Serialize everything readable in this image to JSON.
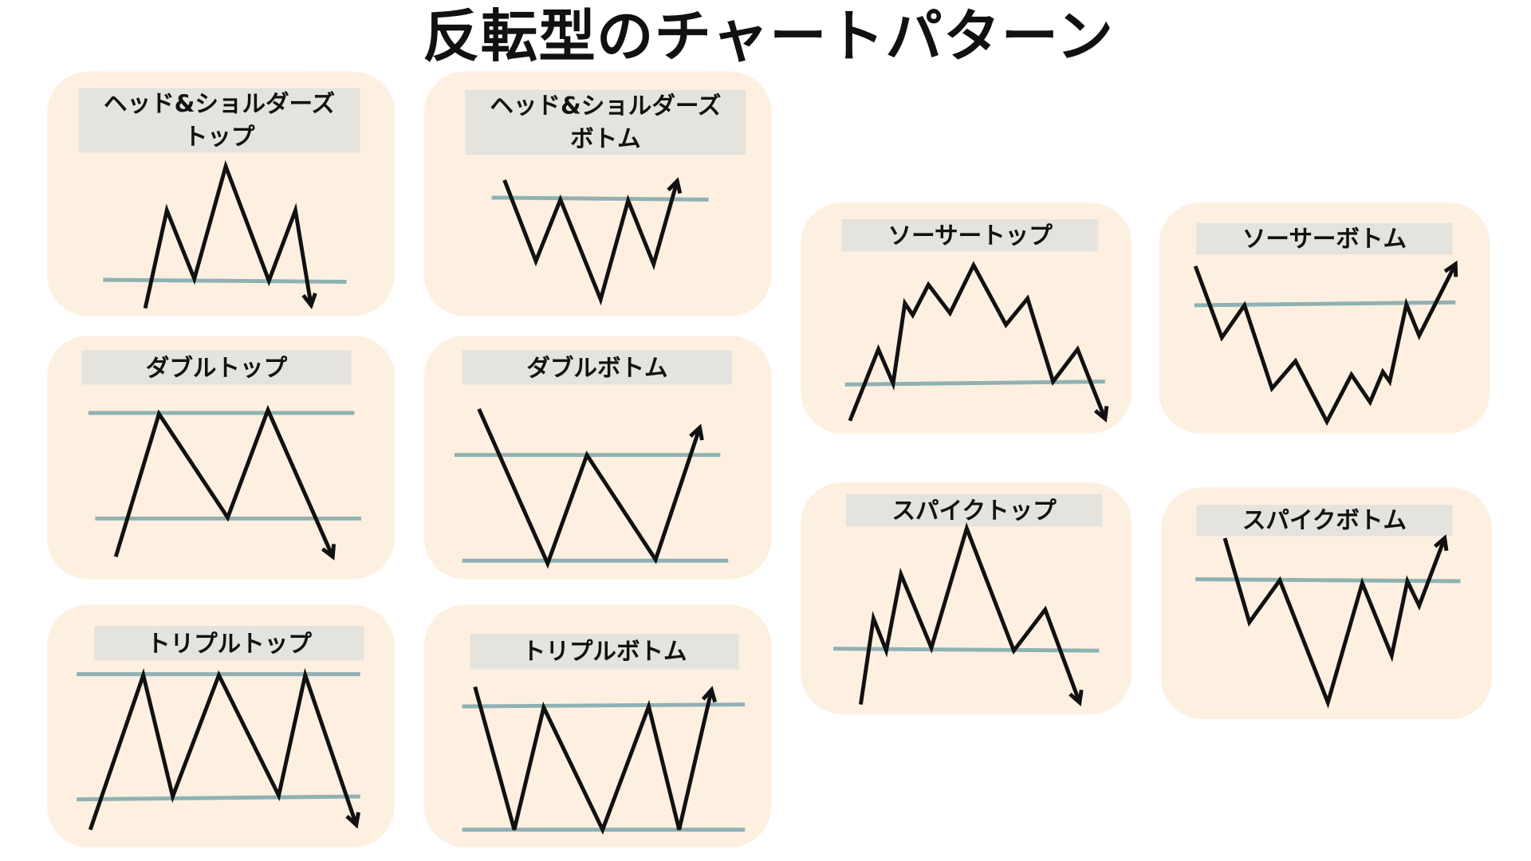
{
  "title": "反転型のチャートパターン",
  "colors": {
    "card_bg": "#fdf0e1",
    "label_bg": "#e4e3dd",
    "support_line": "#8fb1b4",
    "price_line": "#111111"
  },
  "patterns": [
    {
      "label": "ヘッド&ショルダーズ\nトップ",
      "direction": "down"
    },
    {
      "label": "ヘッド&ショルダーズ\nボトム",
      "direction": "up"
    },
    {
      "label": "ソーサートップ",
      "direction": "down"
    },
    {
      "label": "ソーサーボトム",
      "direction": "up"
    },
    {
      "label": "ダブルトップ",
      "direction": "down"
    },
    {
      "label": "ダブルボトム",
      "direction": "up"
    },
    {
      "label": "スパイクトップ",
      "direction": "down"
    },
    {
      "label": "スパイクボトム",
      "direction": "up"
    },
    {
      "label": "トリプルトップ",
      "direction": "down"
    },
    {
      "label": "トリプルボトム",
      "direction": "up"
    }
  ]
}
